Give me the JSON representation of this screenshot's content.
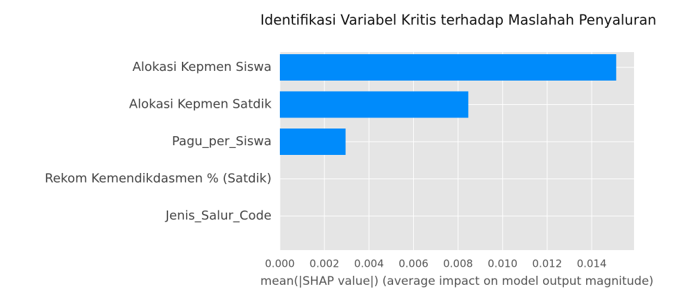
{
  "chart_data": {
    "type": "barh",
    "title": "Identifikasi Variabel Kritis terhadap Maslahah Penyaluran",
    "xlabel": "mean(|SHAP value|) (average impact on model output magnitude)",
    "categories": [
      "Alokasi Kepmen Siswa",
      "Alokasi Kepmen Satdik",
      "Pagu_per_Siswa",
      "Rekom Kemendikdasmen % (Satdik)",
      "Jenis_Salur_Code"
    ],
    "values": [
      0.0151,
      0.00846,
      0.00295,
      0,
      0
    ],
    "color": "#008bfb",
    "xlim": [
      0,
      0.0159
    ],
    "xticks": [
      {
        "value": 0,
        "label": "0.000"
      },
      {
        "value": 0.002,
        "label": "0.002"
      },
      {
        "value": 0.004,
        "label": "0.004"
      },
      {
        "value": 0.006,
        "label": "0.006"
      },
      {
        "value": 0.008,
        "label": "0.008"
      },
      {
        "value": 0.01,
        "label": "0.010"
      },
      {
        "value": 0.012,
        "label": "0.012"
      },
      {
        "value": 0.014,
        "label": "0.014"
      }
    ],
    "grid": true
  }
}
